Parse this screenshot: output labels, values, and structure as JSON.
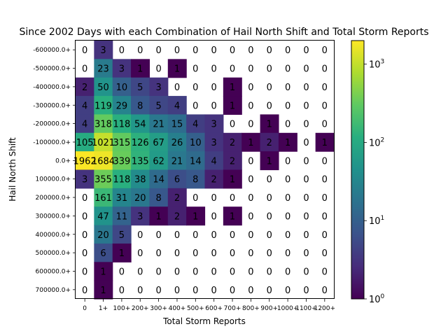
{
  "chart_data": {
    "type": "heatmap",
    "title": "Since 2002 Days with each Combination of Hail North Shift and Total Storm Reports",
    "xlabel": "Total Storm Reports",
    "ylabel": "Hail North Shift",
    "color_scale": "log",
    "colormap": "viridis",
    "colorbar_range": [
      1,
      2000
    ],
    "colorbar_ticks": [
      "10^0",
      "10^1",
      "10^2",
      "10^3"
    ],
    "zero_cells": "blank (white)",
    "x_categories": [
      "0",
      "1+",
      "100+",
      "200+",
      "300+",
      "400+",
      "500+",
      "600+",
      "700+",
      "800+",
      "900+",
      "1000+",
      "1100+",
      "1200+"
    ],
    "y_categories": [
      "-600000.0+",
      "-500000.0+",
      "-400000.0+",
      "-300000.0+",
      "-200000.0+",
      "-100000.0+",
      "0.0+",
      "100000.0+",
      "200000.0+",
      "300000.0+",
      "400000.0+",
      "500000.0+",
      "600000.0+",
      "700000.0+"
    ],
    "values": [
      [
        0,
        3,
        0,
        0,
        0,
        0,
        0,
        0,
        0,
        0,
        0,
        0,
        0,
        0
      ],
      [
        0,
        23,
        3,
        1,
        0,
        1,
        0,
        0,
        0,
        0,
        0,
        0,
        0,
        0
      ],
      [
        2,
        50,
        10,
        5,
        3,
        0,
        0,
        0,
        1,
        0,
        0,
        0,
        0,
        0
      ],
      [
        4,
        119,
        29,
        8,
        5,
        4,
        0,
        0,
        1,
        0,
        0,
        0,
        0,
        0
      ],
      [
        4,
        318,
        118,
        54,
        21,
        15,
        4,
        3,
        0,
        0,
        1,
        0,
        0,
        0
      ],
      [
        105,
        1021,
        315,
        126,
        67,
        26,
        10,
        3,
        2,
        1,
        2,
        1,
        0,
        1
      ],
      [
        1962,
        1684,
        339,
        135,
        62,
        21,
        14,
        4,
        2,
        0,
        1,
        0,
        0,
        0
      ],
      [
        3,
        355,
        118,
        38,
        14,
        6,
        8,
        2,
        1,
        0,
        0,
        0,
        0,
        0
      ],
      [
        0,
        161,
        31,
        20,
        8,
        2,
        0,
        0,
        0,
        0,
        0,
        0,
        0,
        0
      ],
      [
        0,
        47,
        11,
        3,
        1,
        2,
        1,
        0,
        1,
        0,
        0,
        0,
        0,
        0
      ],
      [
        0,
        20,
        5,
        0,
        0,
        0,
        0,
        0,
        0,
        0,
        0,
        0,
        0,
        0
      ],
      [
        0,
        6,
        1,
        0,
        0,
        0,
        0,
        0,
        0,
        0,
        0,
        0,
        0,
        0
      ],
      [
        0,
        1,
        0,
        0,
        0,
        0,
        0,
        0,
        0,
        0,
        0,
        0,
        0,
        0
      ],
      [
        0,
        1,
        0,
        0,
        0,
        0,
        0,
        0,
        0,
        0,
        0,
        0,
        0,
        0
      ]
    ]
  }
}
